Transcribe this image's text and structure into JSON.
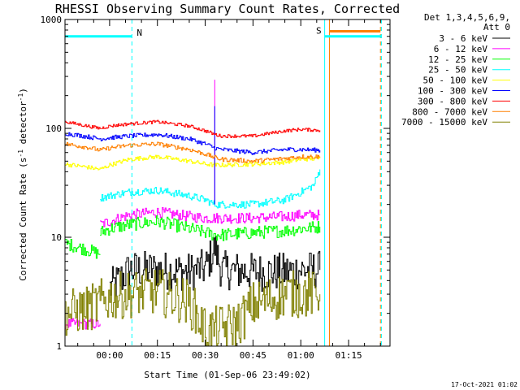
{
  "chart_data": {
    "type": "line",
    "title": "RHESSI Observing Summary Count Rates, Corrected",
    "xlabel": "Start Time (01-Sep-06 23:49:02)",
    "ylabel_main": "Corrected Count Rate (s",
    "ylabel_sup1": "-1",
    "ylabel_mid": " detector",
    "ylabel_sup2": "-1",
    "ylabel_end": ")",
    "yscale": "log",
    "ylim": [
      1,
      1000
    ],
    "xlim_minutes": [
      -14,
      88
    ],
    "x_ticks": [
      {
        "min": 0,
        "label": "00:00"
      },
      {
        "min": 15,
        "label": "00:15"
      },
      {
        "min": 30,
        "label": "00:30"
      },
      {
        "min": 45,
        "label": "00:45"
      },
      {
        "min": 60,
        "label": "01:00"
      },
      {
        "min": 75,
        "label": "01:15"
      }
    ],
    "y_ticks": [
      {
        "v": 1,
        "label": "1"
      },
      {
        "v": 10,
        "label": "10"
      },
      {
        "v": 100,
        "label": "100"
      },
      {
        "v": 1000,
        "label": "1000"
      }
    ],
    "legend_header": [
      "Det 1,3,4,5,6,9,",
      "Att 0"
    ],
    "legend_position": "right",
    "series": [
      {
        "name": "3 - 6 keV",
        "color": "#000000",
        "segments": [
          [
            [
              -14,
              null
            ]
          ],
          [
            [
              0,
              3.4
            ],
            [
              3,
              4.0
            ],
            [
              6,
              5.0
            ],
            [
              15,
              5.0
            ],
            [
              25,
              4.8
            ],
            [
              30,
              5.2
            ],
            [
              33,
              8.0
            ],
            [
              35,
              5.0
            ],
            [
              45,
              4.8
            ],
            [
              55,
              4.8
            ],
            [
              60,
              5.0
            ],
            [
              66,
              5.0
            ]
          ]
        ],
        "noise": 0.18
      },
      {
        "name": "6 - 12 keV",
        "color": "#ff00ff",
        "segments": [
          [
            [
              -14,
              1.6
            ],
            [
              -3,
              1.6
            ]
          ],
          [
            [
              -3,
              13
            ],
            [
              0,
              14
            ],
            [
              6,
              16
            ],
            [
              15,
              17
            ],
            [
              25,
              15.5
            ],
            [
              30,
              15
            ],
            [
              33,
              15
            ],
            [
              35,
              15
            ],
            [
              45,
              15
            ],
            [
              55,
              15.5
            ],
            [
              60,
              16
            ],
            [
              66,
              16
            ]
          ]
        ],
        "noise": 0.05,
        "spike": {
          "x": 33,
          "y": 280
        }
      },
      {
        "name": "12 - 25 keV",
        "color": "#00ff00",
        "segments": [
          [
            [
              -14,
              8.8
            ],
            [
              -6,
              7.5
            ],
            [
              -3,
              7.0
            ]
          ],
          [
            [
              -3,
              11
            ],
            [
              0,
              12
            ],
            [
              6,
              13
            ],
            [
              15,
              14
            ],
            [
              25,
              12
            ],
            [
              30,
              11
            ],
            [
              33,
              10.5
            ],
            [
              35,
              10.5
            ],
            [
              45,
              11
            ],
            [
              55,
              11.5
            ],
            [
              60,
              12
            ],
            [
              66,
              12.5
            ]
          ]
        ],
        "noise": 0.06
      },
      {
        "name": "25 - 50 keV",
        "color": "#00ffff",
        "segments": [
          [
            [
              -3,
              23
            ],
            [
              0,
              24
            ],
            [
              6,
              26
            ],
            [
              15,
              27
            ],
            [
              25,
              24
            ],
            [
              30,
              22
            ],
            [
              33,
              20
            ],
            [
              35,
              20
            ],
            [
              45,
              20
            ],
            [
              55,
              22
            ],
            [
              60,
              26
            ],
            [
              64,
              30
            ],
            [
              66,
              42
            ]
          ]
        ],
        "noise": 0.035
      },
      {
        "name": "50 - 100 keV",
        "color": "#ffff00",
        "segments": [
          [
            [
              -14,
              47
            ],
            [
              -7,
              44
            ],
            [
              -3,
              42
            ],
            [
              0,
              46
            ],
            [
              6,
              52
            ],
            [
              15,
              55
            ],
            [
              25,
              50
            ],
            [
              30,
              47
            ],
            [
              33,
              46
            ],
            [
              35,
              46
            ],
            [
              45,
              47
            ],
            [
              55,
              49
            ],
            [
              60,
              52
            ],
            [
              66,
              53
            ]
          ]
        ],
        "noise": 0.02
      },
      {
        "name": "100 - 300 keV",
        "color": "#0000ff",
        "segments": [
          [
            [
              -14,
              90
            ],
            [
              -7,
              84
            ],
            [
              -3,
              80
            ],
            [
              0,
              82
            ],
            [
              6,
              85
            ],
            [
              15,
              88
            ],
            [
              25,
              80
            ],
            [
              30,
              72
            ],
            [
              33,
              66
            ],
            [
              35,
              64
            ],
            [
              45,
              60
            ],
            [
              55,
              64
            ],
            [
              60,
              64
            ],
            [
              66,
              63
            ]
          ]
        ],
        "noise": 0.02,
        "spike": {
          "x": 33,
          "y": 160
        }
      },
      {
        "name": "300 - 800 keV",
        "color": "#ff0000",
        "segments": [
          [
            [
              -14,
              115
            ],
            [
              -7,
              105
            ],
            [
              -3,
              100
            ],
            [
              0,
              105
            ],
            [
              6,
              110
            ],
            [
              15,
              115
            ],
            [
              25,
              105
            ],
            [
              30,
              95
            ],
            [
              33,
              88
            ],
            [
              35,
              85
            ],
            [
              45,
              85
            ],
            [
              55,
              95
            ],
            [
              60,
              98
            ],
            [
              66,
              96
            ]
          ]
        ],
        "noise": 0.015
      },
      {
        "name": "800 - 7000 keV",
        "color": "#ff8000",
        "segments": [
          [
            [
              -14,
              72
            ],
            [
              -7,
              67
            ],
            [
              -3,
              63
            ],
            [
              0,
              66
            ],
            [
              6,
              70
            ],
            [
              15,
              72
            ],
            [
              25,
              64
            ],
            [
              30,
              58
            ],
            [
              33,
              54
            ],
            [
              35,
              52
            ],
            [
              45,
              50
            ],
            [
              55,
              53
            ],
            [
              60,
              55
            ],
            [
              66,
              55
            ]
          ]
        ],
        "noise": 0.02
      },
      {
        "name": "7000 - 15000 keV",
        "color": "#808000",
        "segments": [
          [
            [
              -14,
              2.0
            ],
            [
              -7,
              2.2
            ],
            [
              -3,
              2.5
            ],
            [
              0,
              2.8
            ],
            [
              6,
              3.0
            ],
            [
              15,
              3.2
            ],
            [
              25,
              2.5
            ],
            [
              30,
              1.4
            ],
            [
              33,
              1.4
            ],
            [
              40,
              1.6
            ],
            [
              45,
              2.4
            ],
            [
              55,
              3.0
            ],
            [
              60,
              3.0
            ],
            [
              66,
              3.0
            ]
          ]
        ],
        "noise": 0.22
      }
    ],
    "annotations": {
      "night_label": "N",
      "saa_label": "S",
      "cyan_bar_y": 700,
      "orange_bar_y": 780,
      "vlines": [
        {
          "x": -14,
          "color": "#00ffff"
        },
        {
          "x": 7,
          "color": "#00ffff",
          "dashed": true
        },
        {
          "x": 67.5,
          "color": "#00ffff"
        },
        {
          "x": 69,
          "color": "#ff8000"
        },
        {
          "x": 85,
          "color": "#ff8000",
          "dashed": true
        },
        {
          "x": 85.3,
          "color": "#00ffff",
          "dashed": true
        }
      ]
    }
  },
  "footer_stamp": "17-Oct-2021 01:02"
}
